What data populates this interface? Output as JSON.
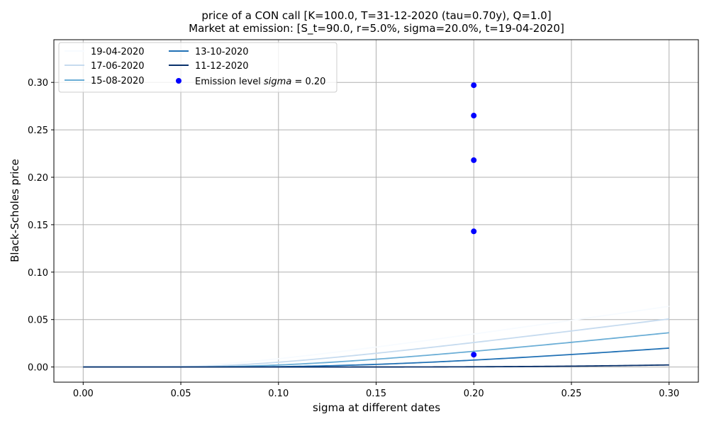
{
  "chart_data": {
    "type": "line",
    "title_line1": "price of a CON call [K=100.0, T=31-12-2020 (tau=0.70y), Q=1.0]",
    "title_line2": "Market at emission: [S_t=90.0, r=5.0%, sigma=20.0%, t=19-04-2020]",
    "xlabel": "sigma at different dates",
    "ylabel": "Black-Scholes price",
    "xlim": [
      -0.015,
      0.315
    ],
    "ylim": [
      -0.016,
      0.345
    ],
    "xticks": [
      0.0,
      0.05,
      0.1,
      0.15,
      0.2,
      0.25,
      0.3
    ],
    "xtick_labels": [
      "0.00",
      "0.05",
      "0.10",
      "0.15",
      "0.20",
      "0.25",
      "0.30"
    ],
    "yticks": [
      0.0,
      0.05,
      0.1,
      0.15,
      0.2,
      0.25,
      0.3
    ],
    "ytick_labels": [
      "0.00",
      "0.05",
      "0.10",
      "0.15",
      "0.20",
      "0.25",
      "0.30"
    ],
    "grid": true,
    "legend_position": "top-left",
    "series": [
      {
        "name": "19-04-2020",
        "color": "#f7fbff",
        "tau": 0.7,
        "S": 90.0,
        "r": 0.05,
        "K": 100.0
      },
      {
        "name": "17-06-2020",
        "color": "#c6dbef",
        "tau": 0.54,
        "S": 90.0,
        "r": 0.05,
        "K": 100.0
      },
      {
        "name": "15-08-2020",
        "color": "#6baed6",
        "tau": 0.38,
        "S": 90.0,
        "r": 0.05,
        "K": 100.0
      },
      {
        "name": "13-10-2020",
        "color": "#2171b5",
        "tau": 0.22,
        "S": 90.0,
        "r": 0.05,
        "K": 100.0
      },
      {
        "name": "11-12-2020",
        "color": "#08306b",
        "tau": 0.055,
        "S": 90.0,
        "r": 0.05,
        "K": 100.0
      }
    ],
    "emission_points": {
      "name": "Emission level $sigma = 0.20$",
      "label_prefix": "Emission level ",
      "label_math": "sigma",
      "label_suffix": " = 0.20",
      "color": "#0000ff",
      "x": 0.2,
      "y": [
        0.297,
        0.265,
        0.218,
        0.143,
        0.013
      ]
    }
  }
}
